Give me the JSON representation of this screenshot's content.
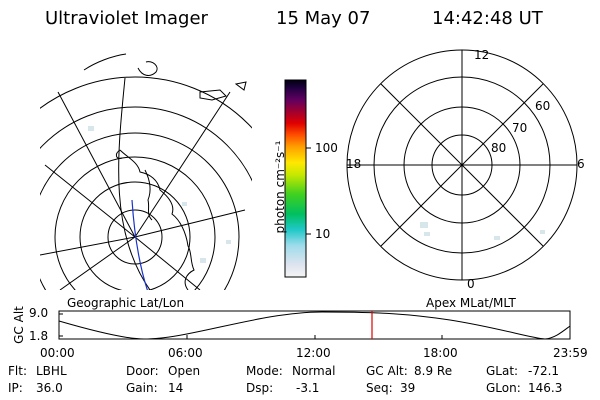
{
  "header": {
    "title": "Ultraviolet Imager",
    "date": "15 May 07",
    "time": "14:42:48 UT"
  },
  "colorbar": {
    "unit_label": "photon cm⁻²s⁻¹",
    "tick_100": "100",
    "tick_10": "10"
  },
  "left_map": {
    "caption": "Geographic Lat/Lon"
  },
  "right_map": {
    "caption": "Apex MLat/MLT",
    "mlt_12": "12",
    "mlt_18": "18",
    "mlt_6": "6",
    "mlt_0": "0",
    "lat_60": "60",
    "lat_70": "70",
    "lat_80": "80"
  },
  "alt_panel": {
    "axis_label": "GC Alt",
    "tick_top": "9.0",
    "tick_bottom": "1.8",
    "time_ticks": [
      "00:00",
      "06:00",
      "12:00",
      "18:00",
      "23:59"
    ]
  },
  "status": {
    "flt_label": "Flt:",
    "flt_value": "LBHL",
    "ip_label": "IP:",
    "ip_value": "36.0",
    "door_label": "Door:",
    "door_value": "Open",
    "gain_label": "Gain:",
    "gain_value": "14",
    "mode_label": "Mode:",
    "mode_value": "Normal",
    "dsp_label": "Dsp:",
    "dsp_value": "-3.1",
    "gcalt_label": "GC Alt:",
    "gcalt_value": "8.9 Re",
    "seq_label": "Seq:",
    "seq_value": "39",
    "glat_label": "GLat:",
    "glat_value": "-72.1",
    "glon_label": "GLon:",
    "glon_value": "146.3"
  }
}
